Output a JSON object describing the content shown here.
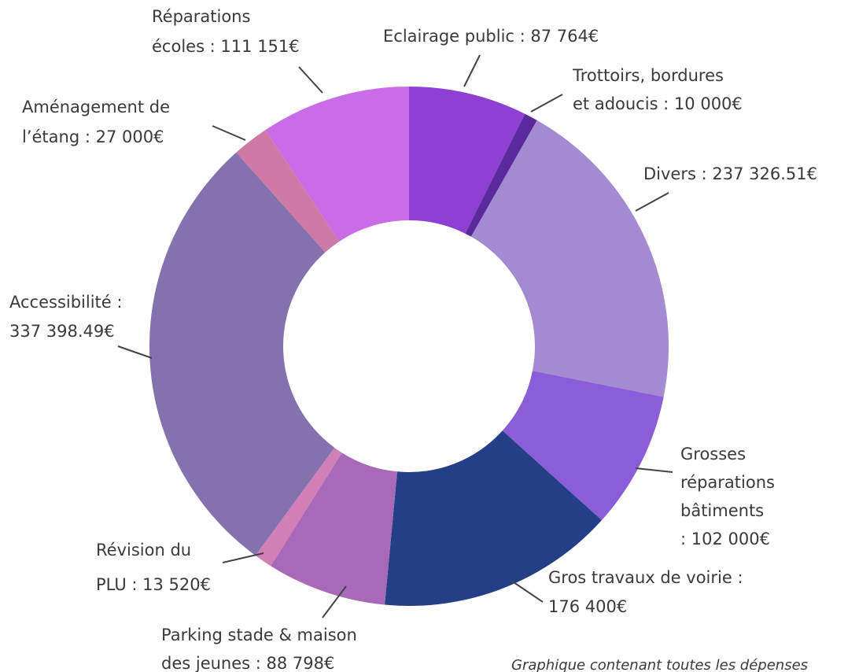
{
  "chart_data": {
    "type": "donut",
    "labels": [
      [
        "Eclairage public : 87 764€"
      ],
      [
        "Trottoirs, bordures",
        "et adoucis : 10 000€"
      ],
      [
        "Divers : 237 326.51€"
      ],
      [
        "Grosses",
        "réparations",
        "bâtiments",
        ": 102 000€"
      ],
      [
        "Gros travaux de voirie :",
        "176 400€"
      ],
      [
        "Parking  stade  &  maison",
        "des jeunes : 88 798€"
      ],
      [
        "Révision du",
        "PLU : 13 520€"
      ],
      [
        "Accessibilité :",
        "337 398.49€"
      ],
      [
        "Aménagement de",
        "l’étang : 27 000€"
      ],
      [
        "Réparations",
        "écoles : 111 151€"
      ]
    ],
    "values": [
      87764,
      10000,
      237326.51,
      102000,
      176400,
      88798,
      13520,
      337398.49,
      27000,
      111151
    ],
    "colors": [
      "#8e40d4",
      "#5a2a9c",
      "#a48bd1",
      "#8b5dd8",
      "#243f88",
      "#a969b9",
      "#d27fb8",
      "#8471ad",
      "#cf7aa6",
      "#c86ce7"
    ],
    "note": "Graphique contenant toutes les dépenses"
  }
}
